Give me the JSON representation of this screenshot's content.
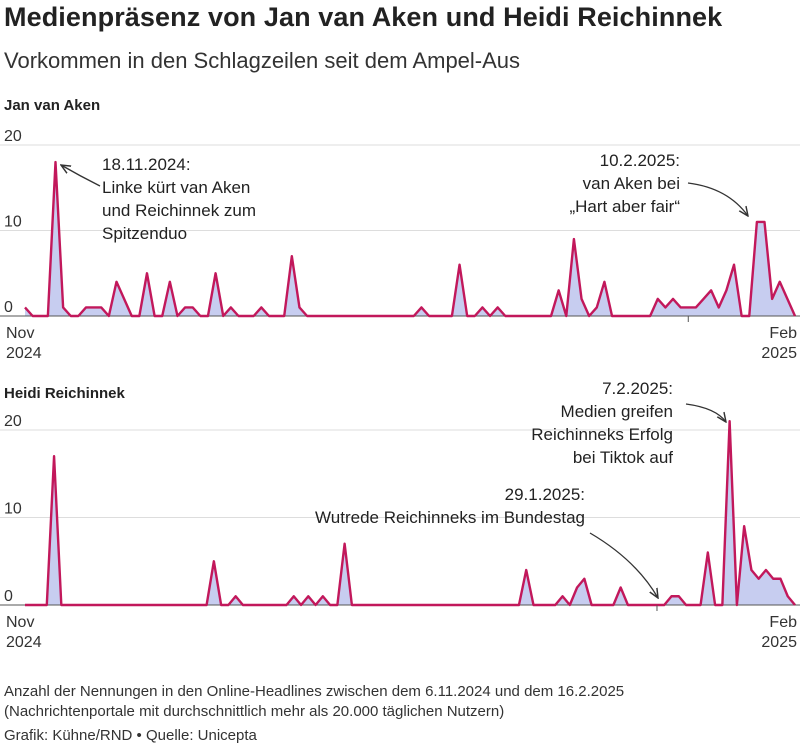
{
  "title": "Medienpräsenz von Jan van Aken und Heidi Reichinnek",
  "subtitle": "Vorkommen in den Schlagzeilen seit dem Ampel-Aus",
  "footer_note_1": "Anzahl der Nennungen in den Online-Headlines zwischen dem 6.11.2024 und dem 16.2.2025",
  "footer_note_2": "(Nachrichtenportale mit durchschnittlich mehr als 20.000 täglichen Nutzern)",
  "credit": "Grafik: Kühne/RND • Quelle: Unicepta",
  "colors": {
    "line": "#c2185b",
    "fill": "#c7cdf0",
    "grid": "#dddddd",
    "annotation": "#333333"
  },
  "chart_data": [
    {
      "type": "area",
      "title": "Jan van Aken",
      "ylim": [
        0,
        20
      ],
      "yticks": [
        "0",
        "10",
        "20"
      ],
      "xticks": [
        {
          "label1": "Nov",
          "label2": "2024",
          "date": "2024-11-01"
        },
        {
          "label1": "Feb",
          "label2": "2025",
          "date": "2025-02-01"
        }
      ],
      "x_start": "2024-11-06",
      "values": [
        1,
        0,
        0,
        0,
        18,
        1,
        0,
        0,
        1,
        1,
        1,
        0,
        4,
        2,
        0,
        0,
        5,
        0,
        0,
        4,
        0,
        1,
        1,
        0,
        0,
        5,
        0,
        1,
        0,
        0,
        0,
        1,
        0,
        0,
        0,
        7,
        1,
        0,
        0,
        0,
        0,
        0,
        0,
        0,
        0,
        0,
        0,
        0,
        0,
        0,
        0,
        0,
        1,
        0,
        0,
        0,
        0,
        6,
        0,
        0,
        1,
        0,
        1,
        0,
        0,
        0,
        0,
        0,
        0,
        0,
        3,
        0,
        9,
        2,
        0,
        1,
        4,
        0,
        0,
        0,
        0,
        0,
        0,
        2,
        1,
        2,
        1,
        1,
        1,
        2,
        3,
        1,
        3,
        6,
        0,
        0,
        11,
        11,
        2,
        4,
        2,
        0
      ],
      "annotations": [
        {
          "lines": [
            "18.11.2024:",
            "Linke kürt van Aken",
            "und Reichinnek zum",
            "Spitzenduo"
          ],
          "date": "2024-11-18"
        },
        {
          "lines": [
            "10.2.2025:",
            "van Aken bei",
            "„Hart aber fair“"
          ],
          "date": "2025-02-10"
        }
      ]
    },
    {
      "type": "area",
      "title": "Heidi Reichinnek",
      "ylim": [
        0,
        20
      ],
      "yticks": [
        "0",
        "10",
        "20"
      ],
      "xticks": [
        {
          "label1": "Nov",
          "label2": "2024",
          "date": "2024-11-01"
        },
        {
          "label1": "Feb",
          "label2": "2025",
          "date": "2025-02-01"
        }
      ],
      "x_start": "2024-11-06",
      "values": [
        0,
        0,
        0,
        0,
        17,
        0,
        0,
        0,
        0,
        0,
        0,
        0,
        0,
        0,
        0,
        0,
        0,
        0,
        0,
        0,
        0,
        0,
        0,
        0,
        0,
        0,
        5,
        0,
        0,
        1,
        0,
        0,
        0,
        0,
        0,
        0,
        0,
        1,
        0,
        1,
        0,
        1,
        0,
        0,
        7,
        0,
        0,
        0,
        0,
        0,
        0,
        0,
        0,
        0,
        0,
        0,
        0,
        0,
        0,
        0,
        0,
        0,
        0,
        0,
        0,
        0,
        0,
        0,
        0,
        4,
        0,
        0,
        0,
        0,
        1,
        0,
        2,
        3,
        0,
        0,
        0,
        0,
        2,
        0,
        0,
        0,
        0,
        0,
        0,
        1,
        1,
        0,
        0,
        0,
        6,
        0,
        0,
        21,
        0,
        9,
        4,
        3,
        4,
        3,
        3,
        1,
        0
      ],
      "annotations": [
        {
          "lines": [
            "7.2.2025:",
            "Medien greifen",
            "Reichinneks Erfolg",
            "bei Tiktok auf"
          ],
          "date": "2025-02-07"
        },
        {
          "lines": [
            "29.1.2025:",
            "Wutrede Reichinneks im Bundestag"
          ],
          "date": "2025-01-29"
        }
      ]
    }
  ]
}
